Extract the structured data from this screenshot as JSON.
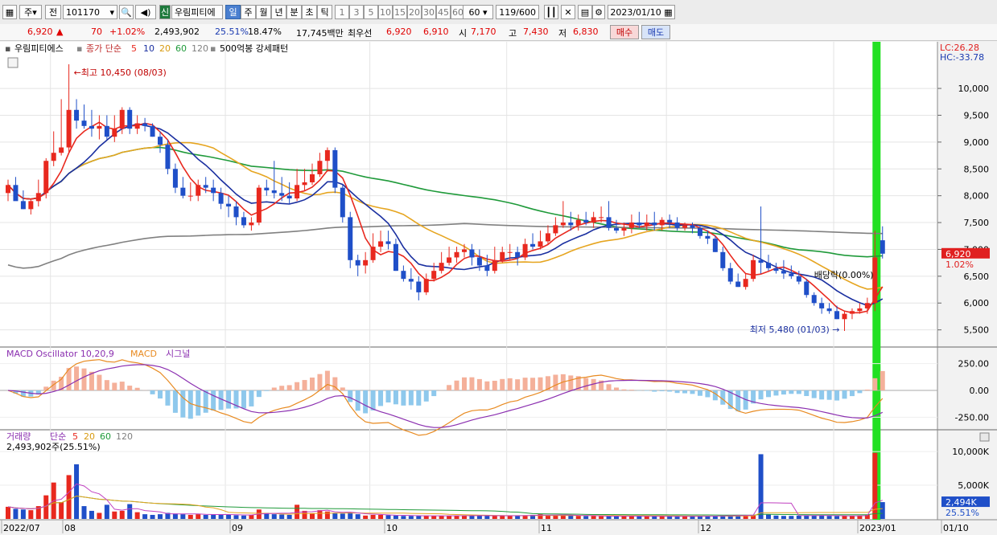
{
  "toolbar": {
    "period_sel": "주",
    "prev_label": "전",
    "code": "101170",
    "name": "우림피티에",
    "name_badge": "신",
    "period_buttons": [
      "일",
      "주",
      "월",
      "년",
      "분",
      "초",
      "틱"
    ],
    "active_period": "일",
    "num_buttons": [
      "1",
      "3",
      "5",
      "10",
      "15",
      "20",
      "30",
      "45",
      "60"
    ],
    "num_select": "60",
    "count": "119",
    "count_total": "/600",
    "date": "2023/01/10"
  },
  "quote": {
    "price": "6,920",
    "change": "70",
    "change_pct": "+1.02%",
    "volume": "2,493,902",
    "vol_ratio": "25.51%",
    "turnover": "18.47%",
    "amount": "17,745백만",
    "pref_label": "최우선",
    "ask": "6,920",
    "bid": "6,910",
    "open_label": "시",
    "open": "7,170",
    "high_label": "고",
    "high": "7,430",
    "low_label": "저",
    "low": "6,830",
    "buy_label": "매수",
    "sell_label": "매도"
  },
  "price_panel": {
    "stock_label": "우림피티에스",
    "ma_label": "종가 단순",
    "ma_periods": [
      "5",
      "10",
      "20",
      "60",
      "120"
    ],
    "pattern_label": "500억봉 강세패턴",
    "lc_label": "LC:26.28",
    "hc_label": "HC:-33.78",
    "high_note": "최고 10,450 (08/03)",
    "low_note": "최저 5,480 (01/03)",
    "ex_note": "배당락(0.00%)",
    "last_price": "6,920",
    "last_pct": "1.02%",
    "yticks": [
      "10,000",
      "9,500",
      "9,000",
      "8,500",
      "8,000",
      "7,500",
      "7,000",
      "6,500",
      "6,000",
      "5,500"
    ]
  },
  "macd_panel": {
    "label_osc": "MACD Oscillator 10,20,9",
    "label_macd": "MACD",
    "label_sig": "시그널",
    "yticks": [
      "250.00",
      "0.00",
      "-250.00"
    ]
  },
  "volume_panel": {
    "label": "거래량",
    "ma_label": "단순",
    "ma_periods": [
      "5",
      "20",
      "60",
      "120"
    ],
    "volume_text": "2,493,902주(25.51%)",
    "yticks": [
      "10,000K",
      "5,000K"
    ],
    "last_vol": "2,494K",
    "last_pct": "25.51%"
  },
  "xaxis": {
    "labels": [
      "2022/07",
      "08",
      "09",
      "10",
      "11",
      "12",
      "2023/01",
      "01/10"
    ]
  },
  "colors": {
    "up": "#e8281e",
    "down": "#1f4fc8",
    "ma5": "#e8281e",
    "ma10": "#1a2fa0",
    "ma20": "#e6a520",
    "ma60": "#1f9a3a",
    "ma120": "#808080",
    "highlight": "#22e022",
    "macd": "#8b2fb0",
    "signal": "#e88a20",
    "osc_pos": "#f4b09a",
    "osc_neg": "#8ec8ec"
  },
  "chart_data": {
    "type": "candlestick",
    "x": [
      "2022-07-22",
      "2022-07-25",
      "2022-07-26",
      "2022-07-27",
      "2022-07-28",
      "2022-07-29",
      "2022-08-01",
      "2022-08-02",
      "2022-08-03",
      "2022-08-04",
      "2022-08-05",
      "2022-08-08",
      "2022-08-09",
      "2022-08-10",
      "2022-08-11",
      "2022-08-12",
      "2022-08-16",
      "2022-08-17",
      "2022-08-18",
      "2022-08-19",
      "2022-08-22",
      "2022-08-23",
      "2022-08-24",
      "2022-08-25",
      "2022-08-26",
      "2022-08-29",
      "2022-08-30",
      "2022-08-31",
      "2022-09-01",
      "2022-09-02",
      "2022-09-05",
      "2022-09-06",
      "2022-09-07",
      "2022-09-08",
      "2022-09-13",
      "2022-09-14",
      "2022-09-15",
      "2022-09-16",
      "2022-09-19",
      "2022-09-20",
      "2022-09-21",
      "2022-09-22",
      "2022-09-23",
      "2022-09-26",
      "2022-09-27",
      "2022-09-28",
      "2022-09-29",
      "2022-09-30",
      "2022-10-04",
      "2022-10-05",
      "2022-10-06",
      "2022-10-07",
      "2022-10-11",
      "2022-10-12",
      "2022-10-13",
      "2022-10-14",
      "2022-10-17",
      "2022-10-18",
      "2022-10-19",
      "2022-10-20",
      "2022-10-21",
      "2022-10-24",
      "2022-10-25",
      "2022-10-26",
      "2022-10-27",
      "2022-10-28",
      "2022-10-31",
      "2022-11-01",
      "2022-11-02",
      "2022-11-03",
      "2022-11-04",
      "2022-11-07",
      "2022-11-08",
      "2022-11-09",
      "2022-11-10",
      "2022-11-11",
      "2022-11-14",
      "2022-11-15",
      "2022-11-16",
      "2022-11-17",
      "2022-11-18",
      "2022-11-21",
      "2022-11-22",
      "2022-11-23",
      "2022-11-24",
      "2022-11-25",
      "2022-11-28",
      "2022-11-29",
      "2022-11-30",
      "2022-12-01",
      "2022-12-02",
      "2022-12-05",
      "2022-12-06",
      "2022-12-07",
      "2022-12-08",
      "2022-12-09",
      "2022-12-12",
      "2022-12-13",
      "2022-12-14",
      "2022-12-15",
      "2022-12-16",
      "2022-12-19",
      "2022-12-20",
      "2022-12-21",
      "2022-12-22",
      "2022-12-23",
      "2022-12-26",
      "2022-12-27",
      "2022-12-28",
      "2023-01-02",
      "2023-01-03",
      "2023-01-04",
      "2023-01-05",
      "2023-01-06",
      "2023-01-09",
      "2023-01-10"
    ],
    "open": [
      8050,
      8200,
      7900,
      7750,
      7900,
      8050,
      8650,
      8800,
      8900,
      9600,
      9400,
      9300,
      9250,
      9300,
      9100,
      9250,
      9600,
      9250,
      9350,
      9300,
      9100,
      8950,
      8500,
      8150,
      8000,
      8000,
      8200,
      8150,
      8050,
      7850,
      7800,
      7600,
      7450,
      7500,
      8150,
      8100,
      8050,
      8000,
      7950,
      8200,
      8250,
      8400,
      8650,
      8850,
      8150,
      7600,
      6800,
      6700,
      6800,
      7050,
      7150,
      7100,
      6600,
      6450,
      6400,
      6200,
      6450,
      6600,
      6750,
      6850,
      6950,
      7000,
      6850,
      6700,
      6600,
      6800,
      6950,
      6950,
      6850,
      7100,
      7050,
      7150,
      7300,
      7450,
      7500,
      7450,
      7550,
      7500,
      7600,
      7600,
      7400,
      7350,
      7400,
      7500,
      7450,
      7500,
      7450,
      7550,
      7500,
      7400,
      7450,
      7400,
      7250,
      7200,
      6950,
      6650,
      6400,
      6300,
      6450,
      6800,
      6750,
      6650,
      6600,
      6550,
      6500,
      6400,
      6150,
      6000,
      5900,
      5850,
      5700,
      5800,
      5850,
      5900,
      6000,
      7170
    ],
    "high": [
      8300,
      8350,
      8100,
      7950,
      8300,
      8700,
      9200,
      9800,
      10450,
      9800,
      9700,
      9600,
      9500,
      9500,
      9500,
      9650,
      9650,
      9500,
      9450,
      9350,
      9200,
      9050,
      8600,
      8350,
      8250,
      8300,
      8350,
      8300,
      8150,
      8000,
      7900,
      7700,
      7600,
      8200,
      8300,
      8650,
      8350,
      8250,
      8500,
      8500,
      8600,
      8800,
      8900,
      8900,
      8200,
      7700,
      6900,
      6950,
      7300,
      7350,
      7350,
      7200,
      6700,
      6650,
      6500,
      6550,
      6750,
      6950,
      7050,
      7050,
      7100,
      7100,
      7000,
      6900,
      7050,
      7050,
      7100,
      7050,
      7200,
      7300,
      7350,
      7450,
      7600,
      7900,
      7700,
      7650,
      7700,
      7700,
      7800,
      7900,
      7550,
      7500,
      7650,
      7700,
      7650,
      7700,
      7600,
      7650,
      7600,
      7500,
      7500,
      7450,
      7350,
      7250,
      7050,
      6750,
      6550,
      6550,
      6900,
      7800,
      6900,
      6750,
      6800,
      6700,
      6600,
      6450,
      6200,
      6100,
      6000,
      5950,
      5850,
      5900,
      6000,
      6100,
      7350,
      7430
    ],
    "low": [
      7900,
      7950,
      7750,
      7650,
      7800,
      7950,
      8550,
      8750,
      8800,
      9250,
      9250,
      9100,
      9050,
      9050,
      9000,
      9150,
      9150,
      9150,
      9200,
      9100,
      8800,
      8400,
      8050,
      7950,
      7900,
      7900,
      8050,
      7900,
      7750,
      7600,
      7450,
      7400,
      7350,
      7450,
      8000,
      7950,
      7900,
      7850,
      7900,
      8100,
      8200,
      8350,
      8450,
      8050,
      7500,
      6650,
      6500,
      6550,
      6750,
      6950,
      7000,
      6600,
      6400,
      6250,
      6050,
      6150,
      6400,
      6550,
      6700,
      6750,
      6850,
      6700,
      6600,
      6500,
      6550,
      6750,
      6800,
      6700,
      6800,
      7000,
      7000,
      7100,
      7250,
      7400,
      7350,
      7350,
      7450,
      7400,
      7500,
      7350,
      7300,
      7250,
      7300,
      7400,
      7350,
      7350,
      7350,
      7400,
      7350,
      7350,
      7300,
      7200,
      7100,
      6950,
      6600,
      6350,
      6300,
      6250,
      6400,
      6550,
      6600,
      6550,
      6450,
      6450,
      6350,
      6100,
      5950,
      5800,
      5800,
      5700,
      5480,
      5700,
      5800,
      5800,
      5850,
      6830
    ],
    "close": [
      8200,
      7900,
      7750,
      7900,
      8050,
      8650,
      8800,
      8900,
      9600,
      9400,
      9300,
      9250,
      9300,
      9100,
      9250,
      9600,
      9250,
      9350,
      9300,
      9100,
      8950,
      8500,
      8150,
      8000,
      8000,
      8200,
      8150,
      8050,
      7850,
      7800,
      7600,
      7450,
      7500,
      8150,
      8100,
      8050,
      8000,
      7950,
      8200,
      8250,
      8400,
      8650,
      8850,
      8150,
      7600,
      6800,
      6700,
      6800,
      7050,
      7150,
      7100,
      6600,
      6450,
      6400,
      6200,
      6450,
      6600,
      6750,
      6850,
      6950,
      7000,
      6850,
      6700,
      6600,
      6800,
      6950,
      6950,
      6850,
      7100,
      7050,
      7150,
      7300,
      7450,
      7500,
      7450,
      7550,
      7500,
      7600,
      7600,
      7400,
      7350,
      7400,
      7500,
      7450,
      7500,
      7450,
      7550,
      7500,
      7400,
      7450,
      7400,
      7250,
      7200,
      6950,
      6650,
      6400,
      6300,
      6450,
      6800,
      6750,
      6650,
      6600,
      6550,
      6500,
      6400,
      6150,
      6000,
      5900,
      5850,
      5700,
      5800,
      5850,
      5900,
      6000,
      6850,
      6920
    ],
    "volume_k": [
      1800,
      1500,
      1400,
      1300,
      1900,
      3500,
      5400,
      2500,
      6500,
      8100,
      1900,
      1200,
      900,
      2100,
      1100,
      1200,
      2200,
      1000,
      700,
      600,
      700,
      900,
      800,
      700,
      600,
      700,
      600,
      700,
      650,
      600,
      550,
      500,
      600,
      1400,
      900,
      700,
      650,
      600,
      2100,
      1200,
      800,
      1300,
      1100,
      900,
      800,
      950,
      700,
      500,
      600,
      600,
      550,
      500,
      450,
      450,
      450,
      500,
      450,
      450,
      480,
      500,
      500,
      480,
      500,
      470,
      450,
      470,
      480,
      500,
      550,
      600,
      700,
      500,
      550,
      650,
      500,
      450,
      420,
      420,
      400,
      420,
      420,
      400,
      450,
      400,
      380,
      400,
      420,
      380,
      350,
      380,
      400,
      420,
      450,
      450,
      500,
      550,
      600,
      550,
      600,
      9600,
      650,
      500,
      450,
      450,
      500,
      550,
      520,
      480,
      450,
      420,
      450,
      480,
      500,
      600,
      9800,
      2494
    ],
    "yrange": [
      5300,
      10600
    ],
    "volume_range_k": [
      0,
      11200
    ],
    "macd_range": [
      -330,
      330
    ],
    "title": "우림피티에스",
    "ylabel": "",
    "xlabel": ""
  }
}
